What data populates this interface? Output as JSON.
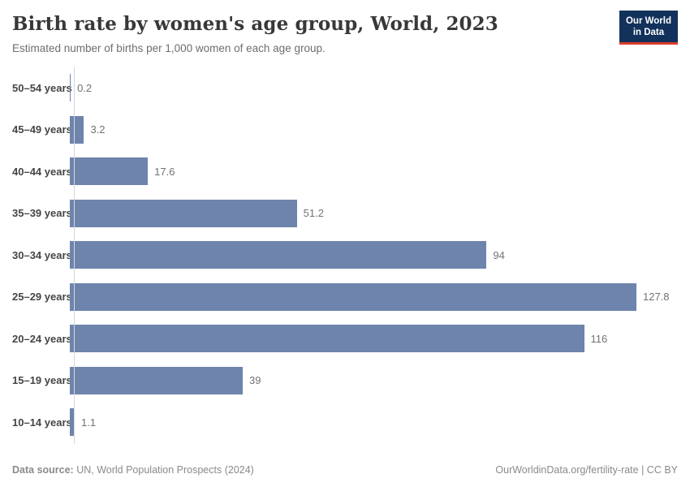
{
  "header": {
    "title": "Birth rate by women's age group, World, 2023",
    "subtitle": "Estimated number of births per 1,000 women of each age group.",
    "logo": {
      "line1": "Our World",
      "line2": "in Data"
    }
  },
  "chart_data": {
    "type": "bar",
    "orientation": "horizontal",
    "title": "Birth rate by women's age group, World, 2023",
    "xlabel": "",
    "ylabel": "",
    "categories": [
      "50–54 years",
      "45–49 years",
      "40–44 years",
      "35–39 years",
      "30–34 years",
      "25–29 years",
      "20–24 years",
      "15–19 years",
      "10–14 years"
    ],
    "values": [
      0.2,
      3.2,
      17.6,
      51.2,
      94,
      127.8,
      116,
      39,
      1.1
    ],
    "value_labels": [
      "0.2",
      "3.2",
      "17.6",
      "51.2",
      "94",
      "127.8",
      "116",
      "39",
      "1.1"
    ],
    "xlim": [
      0,
      138
    ],
    "grid": false,
    "legend": "none",
    "bar_color": "#6e84ad"
  },
  "footer": {
    "source_label": "Data source:",
    "source_text": " UN, World Population Prospects (2024)",
    "right_text": "OurWorldinData.org/fertility-rate | CC BY"
  },
  "colors": {
    "bar": "#6e84ad",
    "logo_background": "#12315b",
    "logo_accent_red": "#dc3d2b",
    "axis_line": "#d6d6d6"
  }
}
